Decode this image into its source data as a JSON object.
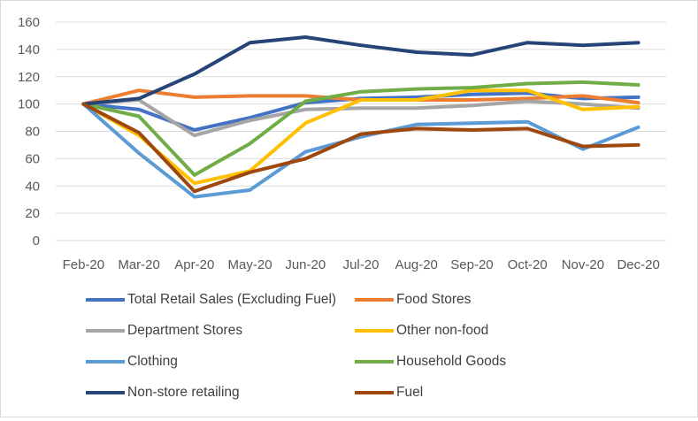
{
  "chart_data": {
    "type": "line",
    "title": "",
    "xlabel": "",
    "ylabel": "",
    "ylim": [
      0,
      160
    ],
    "yticks": [
      0,
      20,
      40,
      60,
      80,
      100,
      120,
      140,
      160
    ],
    "grid": true,
    "legend_position": "bottom",
    "categories": [
      "Feb-20",
      "Mar-20",
      "Apr-20",
      "May-20",
      "Jun-20",
      "Jul-20",
      "Aug-20",
      "Sep-20",
      "Oct-20",
      "Nov-20",
      "Dec-20"
    ],
    "series": [
      {
        "name": "Total Retail Sales (Excluding Fuel)",
        "color": "#4472C4",
        "values": [
          100,
          96,
          81,
          90,
          101,
          104,
          105,
          107,
          108,
          104,
          105
        ]
      },
      {
        "name": "Food Stores",
        "color": "#ED7D31",
        "values": [
          100,
          110,
          105,
          106,
          106,
          103,
          103,
          103,
          104,
          106,
          101
        ]
      },
      {
        "name": "Department Stores",
        "color": "#A5A5A5",
        "values": [
          100,
          103,
          77,
          88,
          96,
          97,
          97,
          99,
          102,
          100,
          97
        ]
      },
      {
        "name": "Other non-food",
        "color": "#FFC000",
        "values": [
          100,
          77,
          42,
          51,
          86,
          103,
          103,
          110,
          110,
          96,
          98
        ]
      },
      {
        "name": "Clothing",
        "color": "#5B9BD5",
        "values": [
          100,
          64,
          32,
          37,
          65,
          76,
          85,
          86,
          87,
          67,
          83
        ]
      },
      {
        "name": "Household Goods",
        "color": "#70AD47",
        "values": [
          100,
          91,
          48,
          71,
          102,
          109,
          111,
          112,
          115,
          116,
          114
        ]
      },
      {
        "name": "Non-store retailing",
        "color": "#264478",
        "values": [
          100,
          104,
          122,
          145,
          149,
          143,
          138,
          136,
          145,
          143,
          145
        ]
      },
      {
        "name": "Fuel",
        "color": "#9E480E",
        "values": [
          100,
          79,
          36,
          50,
          60,
          78,
          82,
          81,
          82,
          69,
          70
        ]
      }
    ]
  }
}
